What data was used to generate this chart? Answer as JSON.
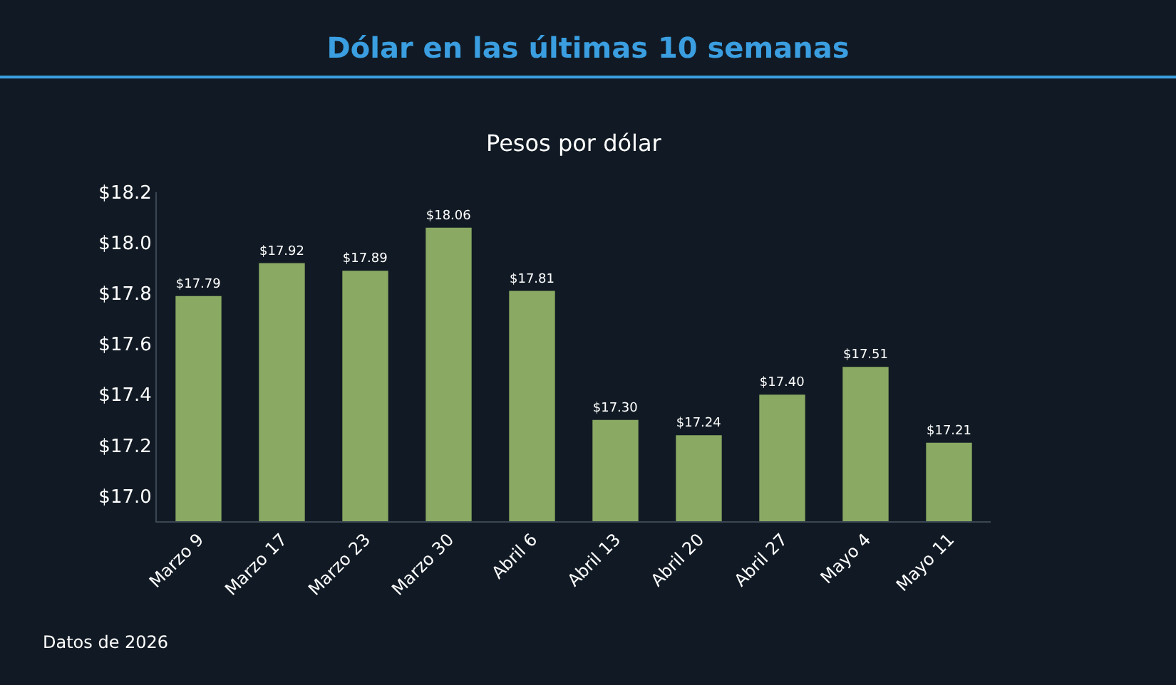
{
  "chart_data": {
    "type": "bar",
    "title": "Dólar en las últimas 10 semanas",
    "subtitle": "Pesos por dólar",
    "categories": [
      "Marzo 9",
      "Marzo 17",
      "Marzo 23",
      "Marzo 30",
      "Abril 6",
      "Abril 13",
      "Abril 20",
      "Abril 27",
      "Mayo 4",
      "Mayo 11"
    ],
    "values": [
      17.79,
      17.92,
      17.89,
      18.06,
      17.81,
      17.3,
      17.24,
      17.4,
      17.51,
      17.21
    ],
    "value_labels": [
      "$17.79",
      "$17.92",
      "$17.89",
      "$18.06",
      "$17.81",
      "$17.30",
      "$17.24",
      "$17.40",
      "$17.51",
      "$17.21"
    ],
    "color": "#8aaa63",
    "ylim": [
      16.9,
      18.2
    ],
    "yticks": [
      {
        "value": 17.0,
        "label": "$17.0"
      },
      {
        "value": 17.2,
        "label": "$17.2"
      },
      {
        "value": 17.4,
        "label": "$17.4"
      },
      {
        "value": 17.6,
        "label": "$17.6"
      },
      {
        "value": 17.8,
        "label": "$17.8"
      },
      {
        "value": 18.0,
        "label": "$18.0"
      },
      {
        "value": 18.2,
        "label": "$18.2"
      }
    ],
    "grid": false,
    "annotations": [
      "Datos de 2026"
    ]
  }
}
